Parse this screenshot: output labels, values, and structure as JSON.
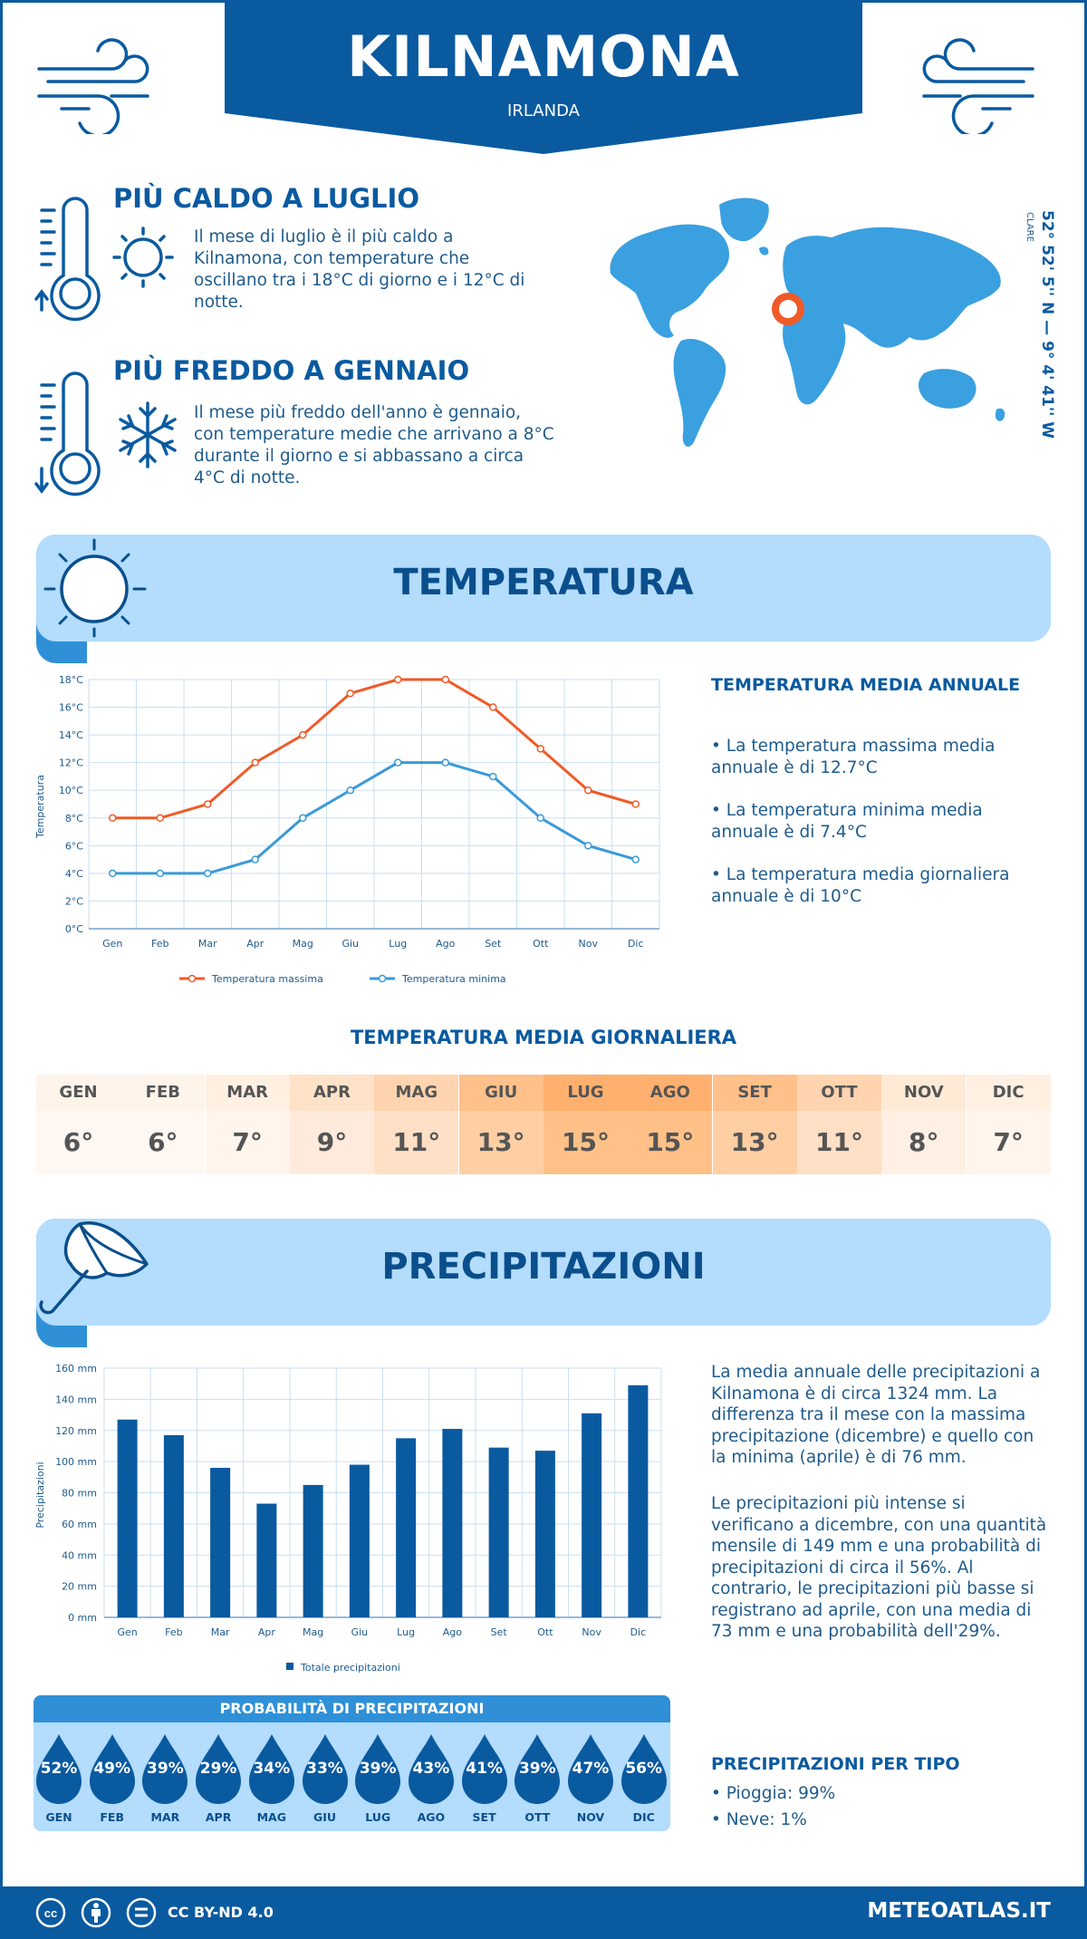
{
  "header": {
    "city": "KILNAMONA",
    "country": "IRLANDA"
  },
  "coords": {
    "text": "52° 52' 5'' N — 9° 4' 41'' W",
    "region": "CLARE"
  },
  "warmest": {
    "title": "PIÙ CALDO A LUGLIO",
    "text": "Il mese di luglio è il più caldo a Kilnamona, con temperature che oscillano tra i 18°C di giorno e i 12°C di notte."
  },
  "coldest": {
    "title": "PIÙ FREDDO A GENNAIO",
    "text": "Il mese più freddo dell'anno è gennaio, con temperature medie che arrivano a 8°C durante il giorno e si abbassano a circa 4°C di notte."
  },
  "temperature": {
    "section_title": "TEMPERATURA",
    "annual_title": "TEMPERATURA MEDIA ANNUALE",
    "bullets": [
      "• La temperatura massima media annuale è di 12.7°C",
      "• La temperatura minima media annuale è di 7.4°C",
      "• La temperatura media giornaliera annuale è di 10°C"
    ],
    "daily_title": "TEMPERATURA MEDIA GIORNALIERA",
    "daily_months": [
      "GEN",
      "FEB",
      "MAR",
      "APR",
      "MAG",
      "GIU",
      "LUG",
      "AGO",
      "SET",
      "OTT",
      "NOV",
      "DIC"
    ],
    "daily_values": [
      "6°",
      "6°",
      "7°",
      "9°",
      "11°",
      "13°",
      "15°",
      "15°",
      "13°",
      "11°",
      "8°",
      "7°"
    ],
    "daily_colors": [
      "#fff4ea",
      "#fff4ea",
      "#fff0e2",
      "#ffe2c8",
      "#ffd4ae",
      "#ffc08a",
      "#ffb06e",
      "#ffb06e",
      "#ffc08a",
      "#ffd4ae",
      "#ffead6",
      "#fff0e2"
    ],
    "daily_colors_light": [
      "#fff8f2",
      "#fff8f2",
      "#fff5ec",
      "#ffeadb",
      "#ffe0c6",
      "#ffcfa4",
      "#ffc188",
      "#ffc188",
      "#ffcfa4",
      "#ffe0c6",
      "#fff0e4",
      "#fff5ec"
    ]
  },
  "precipitation": {
    "section_title": "PRECIPITAZIONI",
    "text1": "La media annuale delle precipitazioni a Kilnamona è di circa 1324 mm. La differenza tra il mese con la massima precipitazione (dicembre) e quello con la minima (aprile) è di 76 mm.",
    "text2": "Le precipitazioni più intense si verificano a dicembre, con una quantità mensile di 149 mm e una probabilità di precipitazioni di circa il 56%. Al contrario, le precipitazioni più basse si registrano ad aprile, con una media di 73 mm e una probabilità dell'29%.",
    "prob_title": "PROBABILITÀ DI PRECIPITAZIONI",
    "prob_values": [
      "52%",
      "49%",
      "39%",
      "29%",
      "34%",
      "33%",
      "39%",
      "43%",
      "41%",
      "39%",
      "47%",
      "56%"
    ],
    "prob_months": [
      "GEN",
      "FEB",
      "MAR",
      "APR",
      "MAG",
      "GIU",
      "LUG",
      "AGO",
      "SET",
      "OTT",
      "NOV",
      "DIC"
    ],
    "type_title": "PRECIPITAZIONI PER TIPO",
    "type_rain": "• Pioggia: 99%",
    "type_snow": "• Neve: 1%"
  },
  "chart_data": [
    {
      "type": "line",
      "categories": [
        "Gen",
        "Feb",
        "Mar",
        "Apr",
        "Mag",
        "Giu",
        "Lug",
        "Ago",
        "Set",
        "Ott",
        "Nov",
        "Dic"
      ],
      "series": [
        {
          "name": "Temperatura massima",
          "values": [
            8,
            8,
            9,
            12,
            14,
            17,
            18,
            18,
            16,
            13,
            10,
            9
          ],
          "color": "#f05a28"
        },
        {
          "name": "Temperatura minima",
          "values": [
            4,
            4,
            4,
            5,
            8,
            10,
            12,
            12,
            11,
            8,
            6,
            5
          ],
          "color": "#3a9ad9"
        }
      ],
      "ylabel": "Temperatura",
      "ylim": [
        0,
        18
      ],
      "yticks": [
        "0°C",
        "2°C",
        "4°C",
        "6°C",
        "8°C",
        "10°C",
        "12°C",
        "14°C",
        "16°C",
        "18°C"
      ],
      "grid": true,
      "legend": "bottom"
    },
    {
      "type": "bar",
      "categories": [
        "Gen",
        "Feb",
        "Mar",
        "Apr",
        "Mag",
        "Giu",
        "Lug",
        "Ago",
        "Set",
        "Ott",
        "Nov",
        "Dic"
      ],
      "series": [
        {
          "name": "Totale precipitazioni",
          "values": [
            127,
            117,
            96,
            73,
            85,
            98,
            115,
            121,
            109,
            107,
            131,
            149
          ],
          "color": "#0a5aa0"
        }
      ],
      "ylabel": "Precipitazioni",
      "ylim": [
        0,
        160
      ],
      "yticks": [
        "0 mm",
        "20 mm",
        "40 mm",
        "60 mm",
        "80 mm",
        "100 mm",
        "120 mm",
        "140 mm",
        "160 mm"
      ],
      "grid": true,
      "legend": "bottom"
    }
  ],
  "footer": {
    "license": "CC BY-ND 4.0",
    "site": "METEOATLAS.IT"
  },
  "colors": {
    "brand": "#0a5aa0",
    "light": "#b3dcfd",
    "accent": "#2f90d8",
    "hot": "#f05a28"
  }
}
